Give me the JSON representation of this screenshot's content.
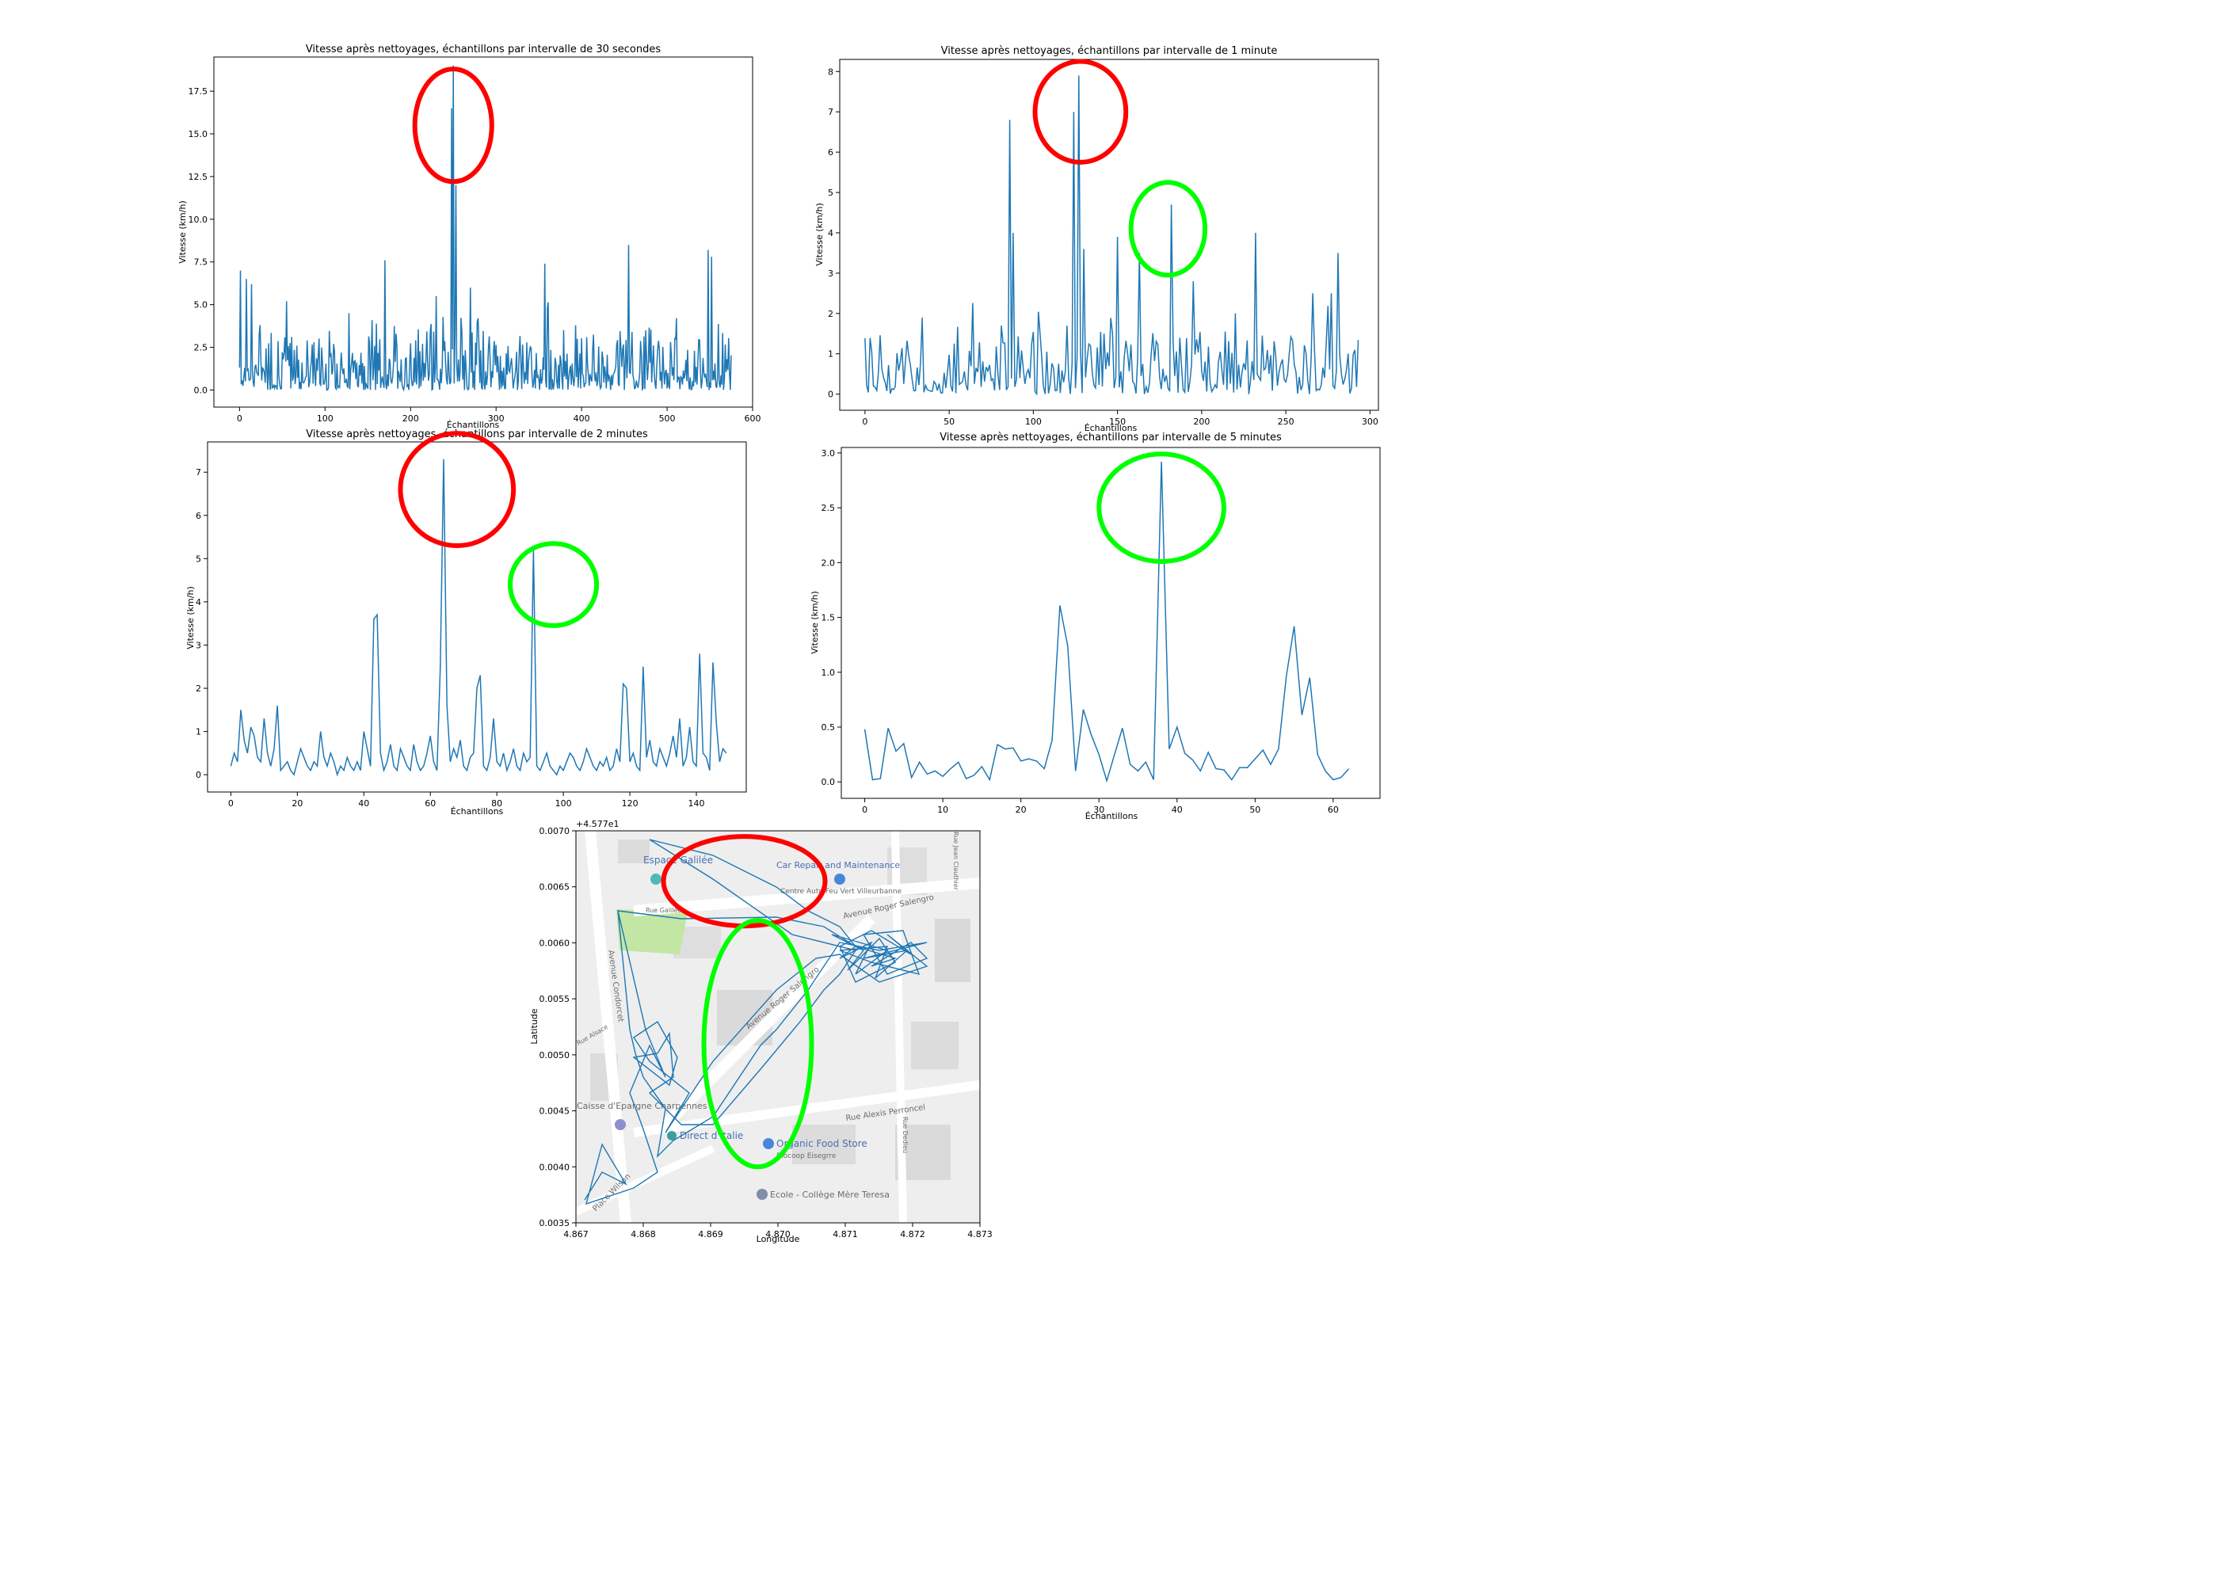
{
  "colors": {
    "line": "#1f77b4",
    "red_mark": "#ff0000",
    "green_mark": "#00ff00",
    "map_bg": "#eeeeee"
  },
  "chart_data": [
    {
      "type": "line",
      "title": "Vitesse après nettoyages, échantillons par intervalle de 30 secondes",
      "xlabel": "Échantillons",
      "ylabel": "Vitesse (km/h)",
      "xlim": [
        -30,
        600
      ],
      "ylim": [
        -1.0,
        19.5
      ],
      "xticks": [
        0,
        100,
        200,
        300,
        400,
        500,
        600
      ],
      "yticks": [
        0.0,
        2.5,
        5.0,
        7.5,
        10.0,
        12.5,
        15.0,
        17.5
      ],
      "ytick_labels": [
        "0.0",
        "2.5",
        "5.0",
        "7.5",
        "10.0",
        "12.5",
        "15.0",
        "17.5"
      ],
      "n": 576,
      "peaks": [
        [
          1,
          7.0
        ],
        [
          8,
          6.5
        ],
        [
          14,
          6.2
        ],
        [
          55,
          5.2
        ],
        [
          128,
          4.5
        ],
        [
          170,
          7.6
        ],
        [
          230,
          5.5
        ],
        [
          248,
          16.5
        ],
        [
          250,
          19.0
        ],
        [
          253,
          12.0
        ],
        [
          270,
          6.0
        ],
        [
          278,
          4.0
        ],
        [
          357,
          7.4
        ],
        [
          360,
          4.8
        ],
        [
          395,
          3.0
        ],
        [
          455,
          8.5
        ],
        [
          475,
          3.5
        ],
        [
          548,
          8.2
        ],
        [
          552,
          7.8
        ],
        [
          570,
          1.8
        ]
      ],
      "marks": [
        {
          "color": "red",
          "cx": 250,
          "cy": 15.5,
          "rx": 45,
          "ry": 3.3
        }
      ]
    },
    {
      "type": "line",
      "title": "Vitesse après nettoyages, échantillons par intervalle de 1 minute",
      "xlabel": "Échantillons",
      "ylabel": "Vitesse (km/h)",
      "xlim": [
        -15,
        305
      ],
      "ylim": [
        -0.4,
        8.3
      ],
      "xticks": [
        0,
        50,
        100,
        150,
        200,
        250,
        300
      ],
      "yticks": [
        0,
        1,
        2,
        3,
        4,
        5,
        6,
        7,
        8
      ],
      "ytick_labels": [
        "0",
        "1",
        "2",
        "3",
        "4",
        "5",
        "6",
        "7",
        "8"
      ],
      "n": 294,
      "peaks": [
        [
          86,
          6.8
        ],
        [
          88,
          4.0
        ],
        [
          124,
          7.0
        ],
        [
          127,
          7.9
        ],
        [
          130,
          3.6
        ],
        [
          150,
          3.9
        ],
        [
          163,
          3.5
        ],
        [
          182,
          4.7
        ],
        [
          195,
          2.8
        ],
        [
          232,
          4.0
        ],
        [
          266,
          2.5
        ],
        [
          277,
          2.5
        ],
        [
          281,
          3.5
        ]
      ],
      "marks": [
        {
          "color": "red",
          "cx": 128,
          "cy": 7.0,
          "rx": 27,
          "ry": 1.25
        },
        {
          "color": "green",
          "cx": 180,
          "cy": 4.1,
          "rx": 22,
          "ry": 1.15
        }
      ]
    },
    {
      "type": "line",
      "title": "Vitesse après nettoyages, échantillons par intervalle de 2 minutes",
      "xlabel": "Échantillons",
      "ylabel": "Vitesse (km/h)",
      "xlim": [
        -7,
        155
      ],
      "ylim": [
        -0.4,
        7.7
      ],
      "xticks": [
        0,
        20,
        40,
        60,
        80,
        100,
        120,
        140
      ],
      "yticks": [
        0,
        1,
        2,
        3,
        4,
        5,
        6,
        7
      ],
      "ytick_labels": [
        "0",
        "1",
        "2",
        "3",
        "4",
        "5",
        "6",
        "7"
      ],
      "x": [
        0,
        1,
        2,
        3,
        4,
        5,
        6,
        7,
        8,
        9,
        10,
        11,
        12,
        13,
        14,
        15,
        16,
        17,
        18,
        19,
        20,
        21,
        22,
        23,
        24,
        25,
        26,
        27,
        28,
        29,
        30,
        31,
        32,
        33,
        34,
        35,
        36,
        37,
        38,
        39,
        40,
        41,
        42,
        43,
        44,
        45,
        46,
        47,
        48,
        49,
        50,
        51,
        52,
        53,
        54,
        55,
        56,
        57,
        58,
        59,
        60,
        61,
        62,
        63,
        64,
        65,
        66,
        67,
        68,
        69,
        70,
        71,
        72,
        73,
        74,
        75,
        76,
        77,
        78,
        79,
        80,
        81,
        82,
        83,
        84,
        85,
        86,
        87,
        88,
        89,
        90,
        91,
        92,
        93,
        94,
        95,
        96,
        97,
        98,
        99,
        100,
        101,
        102,
        103,
        104,
        105,
        106,
        107,
        108,
        109,
        110,
        111,
        112,
        113,
        114,
        115,
        116,
        117,
        118,
        119,
        120,
        121,
        122,
        123,
        124,
        125,
        126,
        127,
        128,
        129,
        130,
        131,
        132,
        133,
        134,
        135,
        136,
        137,
        138,
        139,
        140,
        141,
        142,
        143,
        144,
        145,
        146,
        147,
        148,
        149
      ],
      "y": [
        0.2,
        0.5,
        0.3,
        1.5,
        0.8,
        0.5,
        1.1,
        0.9,
        0.4,
        0.3,
        1.3,
        0.5,
        0.2,
        0.6,
        1.6,
        0.1,
        0.2,
        0.3,
        0.1,
        0.0,
        0.3,
        0.6,
        0.4,
        0.2,
        0.1,
        0.3,
        0.2,
        1.0,
        0.4,
        0.2,
        0.5,
        0.3,
        0.0,
        0.2,
        0.1,
        0.4,
        0.2,
        0.1,
        0.3,
        0.1,
        1.0,
        0.6,
        0.2,
        3.6,
        3.7,
        0.5,
        0.1,
        0.3,
        0.7,
        0.2,
        0.1,
        0.6,
        0.4,
        0.2,
        0.1,
        0.7,
        0.3,
        0.1,
        0.2,
        0.5,
        0.9,
        0.3,
        0.1,
        2.5,
        7.3,
        1.6,
        0.3,
        0.6,
        0.4,
        0.8,
        0.2,
        0.1,
        0.4,
        0.5,
        2.0,
        2.3,
        0.2,
        0.1,
        0.4,
        1.3,
        0.3,
        0.2,
        0.5,
        0.1,
        0.3,
        0.6,
        0.2,
        0.1,
        0.5,
        0.3,
        0.4,
        5.2,
        0.2,
        0.1,
        0.3,
        0.5,
        0.2,
        0.1,
        0.0,
        0.2,
        0.1,
        0.3,
        0.5,
        0.4,
        0.2,
        0.1,
        0.3,
        0.6,
        0.4,
        0.2,
        0.1,
        0.3,
        0.2,
        0.4,
        0.1,
        0.2,
        0.6,
        0.3,
        2.1,
        2.0,
        0.3,
        0.5,
        0.2,
        0.1,
        2.5,
        0.4,
        0.8,
        0.3,
        0.2,
        0.6,
        0.4,
        0.2,
        0.5,
        0.9,
        0.4,
        1.3,
        0.2,
        0.4,
        1.1,
        0.3,
        0.2,
        2.8,
        0.5,
        0.4,
        0.1,
        2.6,
        1.2,
        0.3,
        0.6,
        0.5
      ],
      "marks": [
        {
          "color": "red",
          "cx": 68,
          "cy": 6.6,
          "rx": 17,
          "ry": 1.3
        },
        {
          "color": "green",
          "cx": 97,
          "cy": 4.4,
          "rx": 13,
          "ry": 0.95
        }
      ]
    },
    {
      "type": "line",
      "title": "Vitesse après nettoyages, échantillons par intervalle de 5 minutes",
      "xlabel": "Échantillons",
      "ylabel": "Vitesse (km/h)",
      "xlim": [
        -3,
        66
      ],
      "ylim": [
        -0.15,
        3.05
      ],
      "xticks": [
        0,
        10,
        20,
        30,
        40,
        50,
        60
      ],
      "yticks": [
        0.0,
        0.5,
        1.0,
        1.5,
        2.0,
        2.5,
        3.0
      ],
      "ytick_labels": [
        "0.0",
        "0.5",
        "1.0",
        "1.5",
        "2.0",
        "2.5",
        "3.0"
      ],
      "x": [
        0,
        1,
        2,
        3,
        4,
        5,
        6,
        7,
        8,
        9,
        10,
        11,
        12,
        13,
        14,
        15,
        16,
        17,
        18,
        19,
        20,
        21,
        22,
        23,
        24,
        25,
        26,
        27,
        28,
        29,
        30,
        31,
        32,
        33,
        34,
        35,
        36,
        37,
        38,
        39,
        40,
        41,
        42,
        43,
        44,
        45,
        46,
        47,
        48,
        49,
        50,
        51,
        52,
        53,
        54,
        55,
        56,
        57,
        58,
        59,
        60,
        61,
        62
      ],
      "y": [
        0.48,
        0.02,
        0.03,
        0.49,
        0.28,
        0.35,
        0.04,
        0.18,
        0.07,
        0.1,
        0.05,
        0.12,
        0.18,
        0.03,
        0.06,
        0.14,
        0.02,
        0.34,
        0.3,
        0.31,
        0.19,
        0.21,
        0.19,
        0.12,
        0.38,
        1.61,
        1.24,
        0.1,
        0.66,
        0.43,
        0.25,
        0.01,
        0.25,
        0.49,
        0.16,
        0.1,
        0.18,
        0.02,
        2.92,
        0.3,
        0.5,
        0.26,
        0.2,
        0.1,
        0.27,
        0.12,
        0.11,
        0.02,
        0.13,
        0.13,
        0.21,
        0.29,
        0.16,
        0.3,
        0.96,
        1.42,
        0.61,
        0.95,
        0.25,
        0.1,
        0.02,
        0.04,
        0.12
      ],
      "marks": [
        {
          "color": "green",
          "cx": 38,
          "cy": 2.5,
          "rx": 8,
          "ry": 0.49
        }
      ]
    },
    {
      "type": "scatter",
      "title": "",
      "xlabel": "Longitude",
      "ylabel": "Latitude",
      "offset_label": "+4.577e1",
      "xlim": [
        4.867,
        4.873
      ],
      "ylim": [
        0.0035,
        0.007
      ],
      "xticks": [
        4.867,
        4.868,
        4.869,
        4.87,
        4.871,
        4.872,
        4.873
      ],
      "xtick_labels": [
        "4.867",
        "4.868",
        "4.869",
        "4.870",
        "4.871",
        "4.872",
        "4.873"
      ],
      "yticks": [
        0.0035,
        0.004,
        0.0045,
        0.005,
        0.0055,
        0.006,
        0.0065,
        0.007
      ],
      "ytick_labels": [
        "0.0035",
        "0.0040",
        "0.0045",
        "0.0050",
        "0.0055",
        "0.0060",
        "0.0065",
        "0.0070"
      ],
      "map_labels": [
        "Espace Galilée",
        "Car Repair and Maintenance",
        "Centre Auto Feu Vert Villeurbanne",
        "Avenue Roger Salengro",
        "Avenue Roger Salengro",
        "Avenue Condorcet",
        "Rue Alexis Perroncel",
        "Direct d'Italie",
        "Organic Food Store",
        "Biocoop Eisegrre",
        "Ecole - Collège Mère Teresa",
        "Caisse d'Epargne Charpennes",
        "Place Wilson",
        "Rue Galilée",
        "Rue Alsace",
        "Rue Dedieu",
        "Rue Jean Clauthier"
      ],
      "marks": [
        {
          "color": "red",
          "cx": 4.8695,
          "cy": 0.00655,
          "rx": 0.0012,
          "ry": 0.0004
        },
        {
          "color": "green",
          "cx": 4.8697,
          "cy": 0.0051,
          "rx": 0.0008,
          "ry": 0.0011
        }
      ]
    }
  ]
}
